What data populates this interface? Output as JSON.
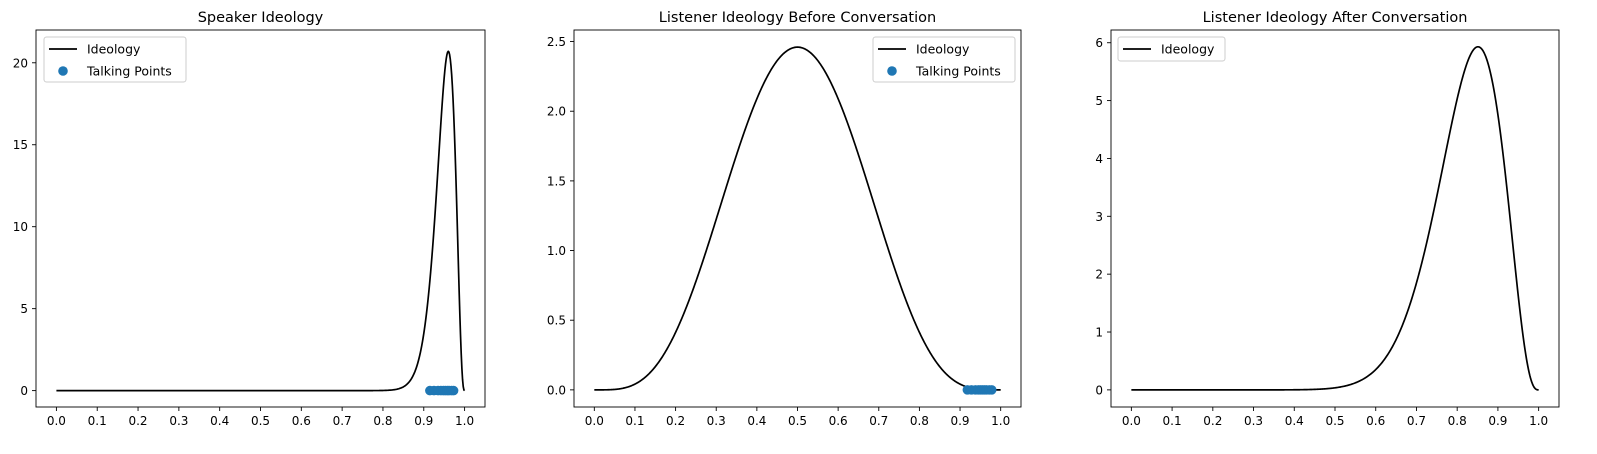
{
  "chart_data": [
    {
      "type": "line",
      "title": "Speaker Ideology",
      "xlabel": "",
      "ylabel": "",
      "xlim": [
        -0.05,
        1.05
      ],
      "ylim": [
        -1.0,
        22.0
      ],
      "xticks": [
        "0.0",
        "0.1",
        "0.2",
        "0.3",
        "0.4",
        "0.5",
        "0.6",
        "0.7",
        "0.8",
        "0.9",
        "1.0"
      ],
      "xtick_values": [
        0,
        0.1,
        0.2,
        0.3,
        0.4,
        0.5,
        0.6,
        0.7,
        0.8,
        0.9,
        1.0
      ],
      "yticks": [
        "0",
        "5",
        "10",
        "15",
        "20"
      ],
      "ytick_values": [
        0,
        5,
        10,
        15,
        20
      ],
      "legend_position": "upper-left",
      "series": [
        {
          "name": "Ideology",
          "kind": "line",
          "color": "#000000",
          "beta": {
            "a": 68.4,
            "b": 3.8
          },
          "peak": 20.7
        }
      ],
      "scatter": {
        "name": "Talking Points",
        "color": "#1f77b4",
        "y": 0,
        "x": [
          0.915,
          0.925,
          0.935,
          0.942,
          0.948,
          0.953,
          0.958,
          0.962,
          0.968,
          0.973
        ]
      },
      "legend": [
        "Ideology",
        "Talking Points"
      ]
    },
    {
      "type": "line",
      "title": "Listener Ideology Before Conversation",
      "xlabel": "",
      "ylabel": "",
      "xlim": [
        -0.05,
        1.05
      ],
      "ylim": [
        -0.123,
        2.583
      ],
      "xticks": [
        "0.0",
        "0.1",
        "0.2",
        "0.3",
        "0.4",
        "0.5",
        "0.6",
        "0.7",
        "0.8",
        "0.9",
        "1.0"
      ],
      "xtick_values": [
        0,
        0.1,
        0.2,
        0.3,
        0.4,
        0.5,
        0.6,
        0.7,
        0.8,
        0.9,
        1.0
      ],
      "yticks": [
        "0.0",
        "0.5",
        "1.0",
        "1.5",
        "2.0",
        "2.5"
      ],
      "ytick_values": [
        0,
        0.5,
        1.0,
        1.5,
        2.0,
        2.5
      ],
      "legend_position": "upper-right",
      "series": [
        {
          "name": "Ideology",
          "kind": "line",
          "color": "#000000",
          "beta": {
            "a": 5,
            "b": 5
          },
          "peak": 2.46
        }
      ],
      "scatter": {
        "name": "Talking Points",
        "color": "#1f77b4",
        "y": 0,
        "x": [
          0.918,
          0.928,
          0.938,
          0.945,
          0.95,
          0.955,
          0.96,
          0.965,
          0.972,
          0.978
        ]
      },
      "legend": [
        "Ideology",
        "Talking Points"
      ]
    },
    {
      "type": "line",
      "title": "Listener Ideology After Conversation",
      "xlabel": "",
      "ylabel": "",
      "xlim": [
        -0.05,
        1.05
      ],
      "ylim": [
        -0.296,
        6.22
      ],
      "xticks": [
        "0.0",
        "0.1",
        "0.2",
        "0.3",
        "0.4",
        "0.5",
        "0.6",
        "0.7",
        "0.8",
        "0.9",
        "1.0"
      ],
      "xtick_values": [
        0,
        0.1,
        0.2,
        0.3,
        0.4,
        0.5,
        0.6,
        0.7,
        0.8,
        0.9,
        1.0
      ],
      "yticks": [
        "0",
        "1",
        "2",
        "3",
        "4",
        "5",
        "6"
      ],
      "ytick_values": [
        0,
        1,
        2,
        3,
        4,
        5,
        6
      ],
      "legend_position": "upper-left",
      "series": [
        {
          "name": "Ideology",
          "kind": "line",
          "color": "#000000",
          "beta": {
            "a": 17,
            "b": 3.8
          },
          "peak": 5.93
        }
      ],
      "legend": [
        "Ideology"
      ]
    }
  ]
}
